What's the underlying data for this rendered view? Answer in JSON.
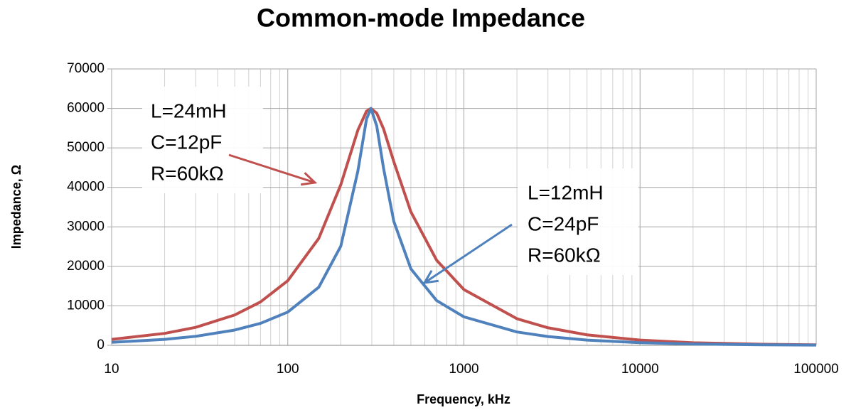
{
  "chart_data": {
    "type": "line",
    "title": "Common-mode Impedance",
    "x_label": "Frequency, kHz",
    "y_label": "Impedance, Ω",
    "x_scale": "log",
    "minor_grid": true,
    "grid": true,
    "x": [
      10,
      20,
      30,
      50,
      70,
      100,
      150,
      200,
      250,
      280,
      296.6,
      320,
      350,
      400,
      500,
      700,
      1000,
      2000,
      3000,
      5000,
      10000,
      20000,
      50000,
      100000
    ],
    "series": [
      {
        "name": "L=24mH C=12pF",
        "color": "#c0504d",
        "values": [
          1509,
          3026,
          4553,
          7695,
          10990,
          16367,
          27100,
          40665,
          54490,
          59294,
          60000,
          58790,
          54795,
          46519,
          33812,
          21554,
          14134,
          6738,
          4451,
          2660,
          1327,
          663,
          265,
          133
        ]
      },
      {
        "name": "L=12mH C=24pF",
        "color": "#4f81bd",
        "values": [
          755,
          1515,
          2282,
          3873,
          5566,
          8422,
          14724,
          25114,
          44118,
          57318,
          60000,
          55556,
          44776,
          31387,
          19370,
          11342,
          7219,
          3384,
          2231,
          1331,
          664,
          332,
          133,
          66
        ]
      }
    ],
    "annotations": [
      {
        "lines": [
          "L=24mH",
          "C=12pF",
          "R=60kΩ"
        ]
      },
      {
        "lines": [
          "L=12mH",
          "C=24pF",
          "R=60kΩ"
        ]
      }
    ],
    "xlim": [
      10,
      100000
    ],
    "xticks": [
      10,
      100,
      1000,
      10000,
      100000
    ],
    "ylim": [
      0,
      70000
    ],
    "yticks": [
      0,
      10000,
      20000,
      30000,
      40000,
      50000,
      60000,
      70000
    ]
  }
}
